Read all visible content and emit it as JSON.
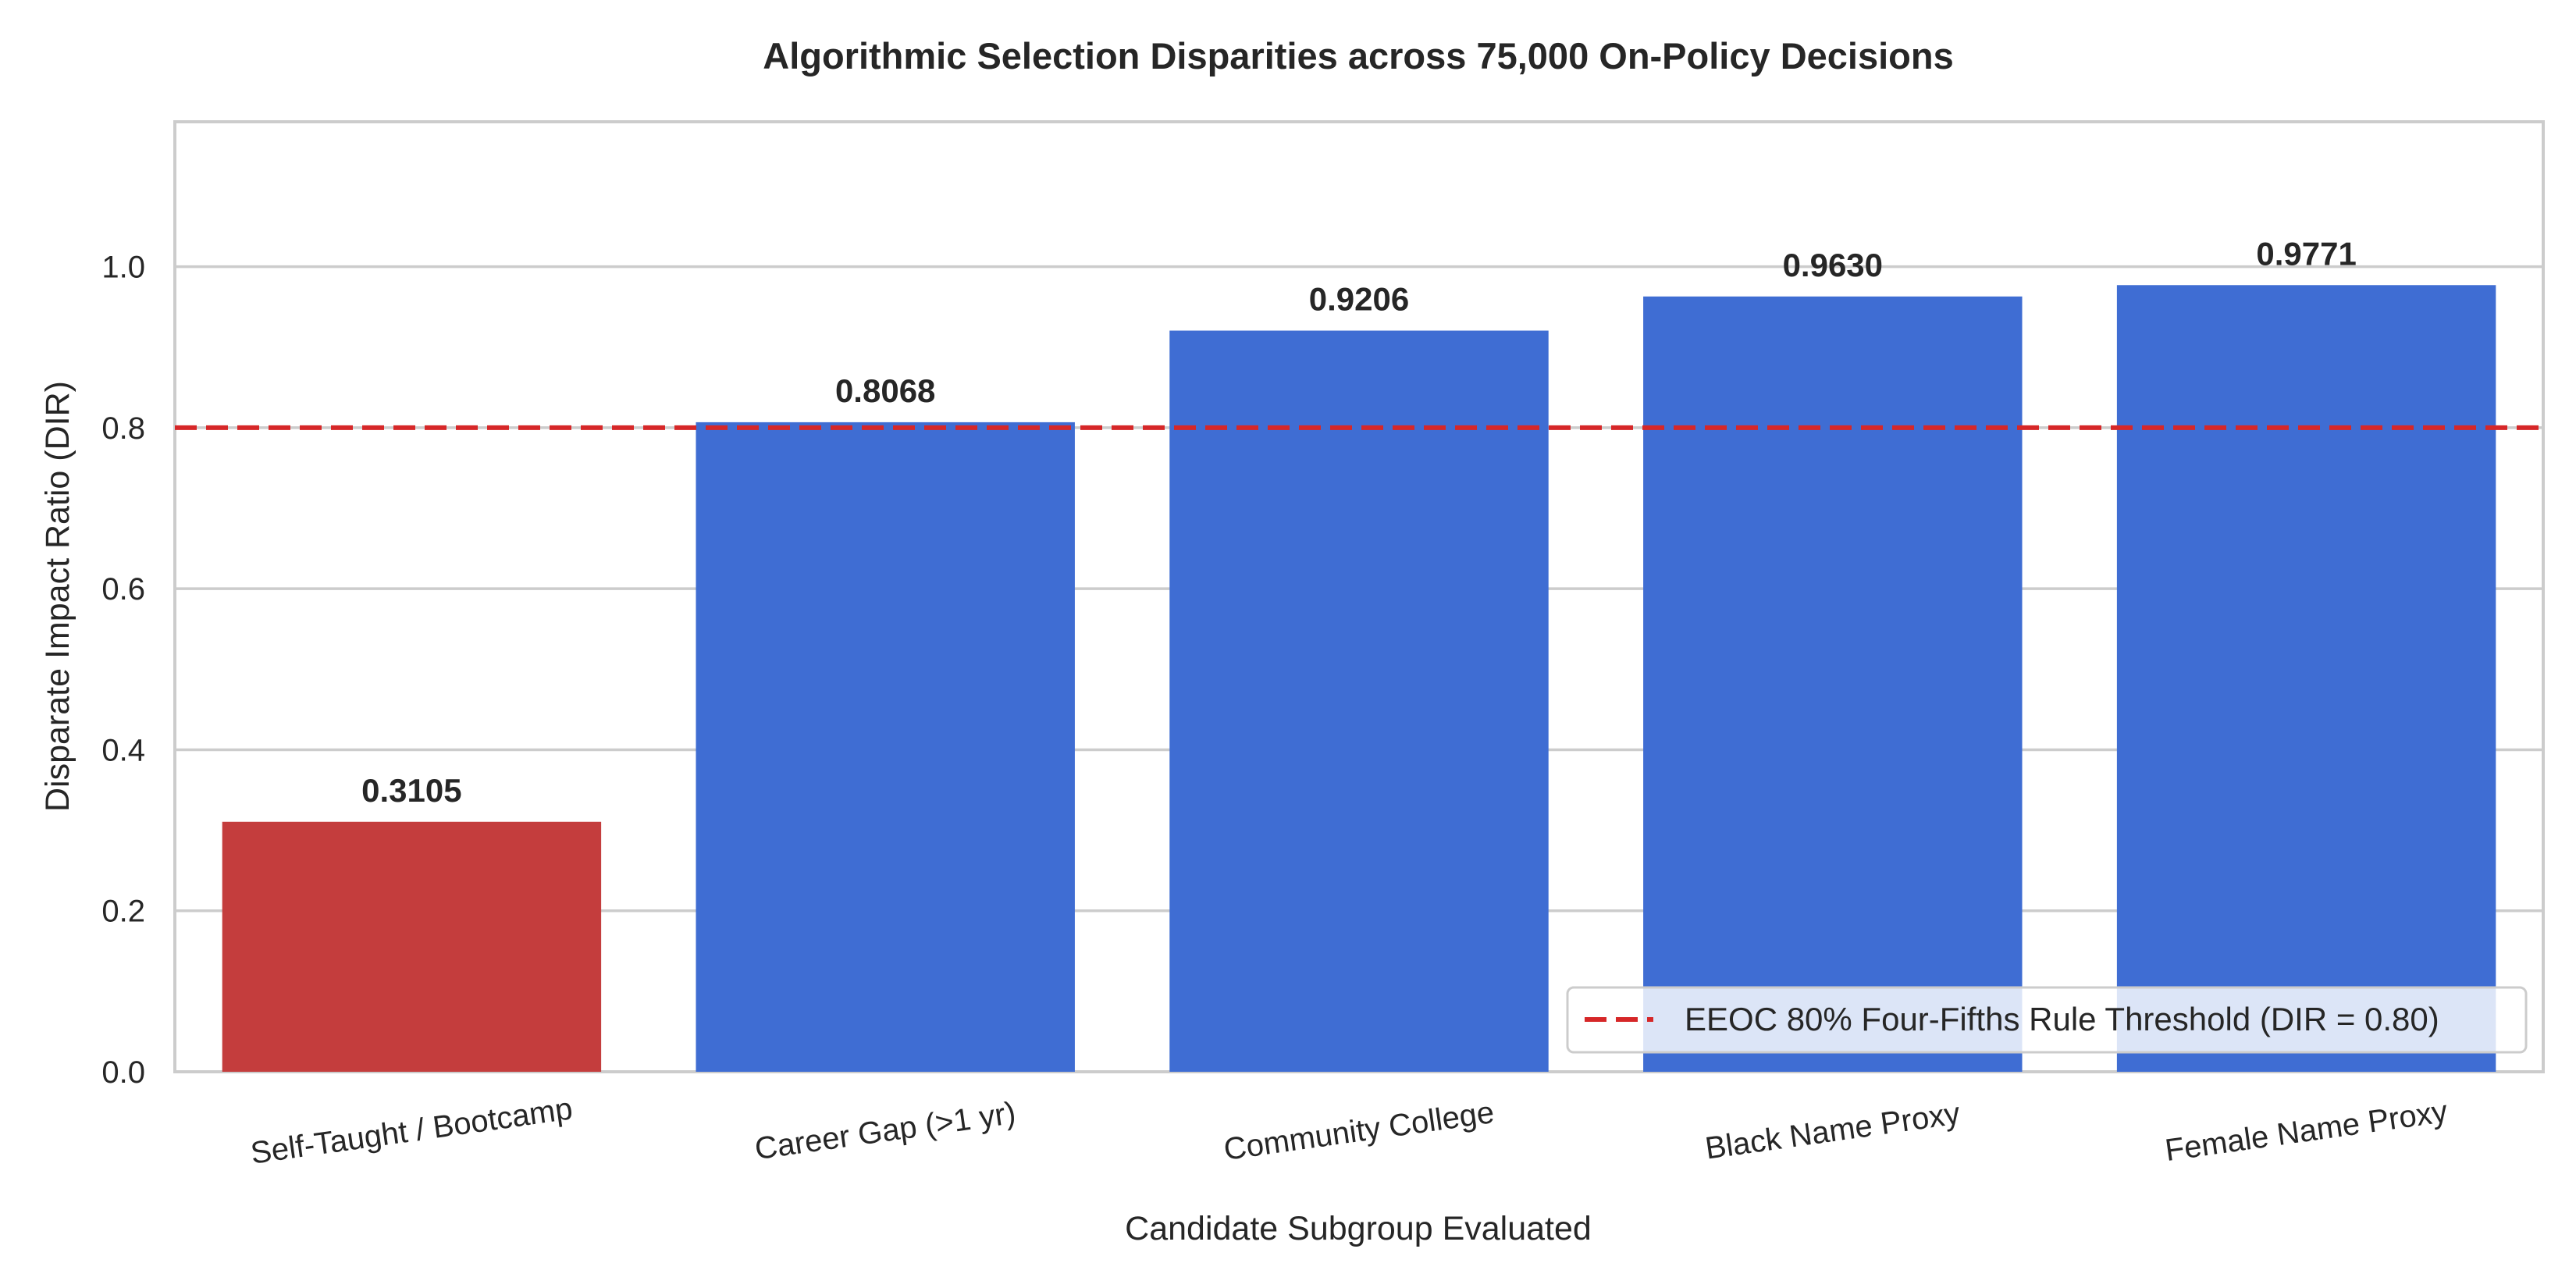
{
  "chart_data": {
    "type": "bar",
    "title": "Algorithmic Selection Disparities across 75,000 On-Policy Decisions",
    "xlabel": "Candidate Subgroup Evaluated",
    "ylabel": "Disparate Impact Ratio (DIR)",
    "categories": [
      "Self-Taught / Bootcamp",
      "Career Gap (>1 yr)",
      "Community College",
      "Black Name Proxy",
      "Female Name Proxy"
    ],
    "values": [
      0.3105,
      0.8068,
      0.9206,
      0.963,
      0.9771
    ],
    "value_labels": [
      "0.3105",
      "0.8068",
      "0.9206",
      "0.9630",
      "0.9771"
    ],
    "bar_colors": [
      "#c43d3d",
      "#3f6dd3",
      "#3f6dd3",
      "#3f6dd3",
      "#3f6dd3"
    ],
    "ylim": [
      0,
      1.18
    ],
    "yticks": [
      0.0,
      0.2,
      0.4,
      0.6,
      0.8,
      1.0
    ],
    "ytick_labels": [
      "0.0",
      "0.2",
      "0.4",
      "0.6",
      "0.8",
      "1.0"
    ],
    "grid": "horizontal",
    "threshold": {
      "value": 0.8,
      "label": "EEOC 80% Four-Fifths Rule Threshold (DIR = 0.80)",
      "color": "#d62728",
      "style": "dashed"
    },
    "legend_placement": "lower-right"
  }
}
